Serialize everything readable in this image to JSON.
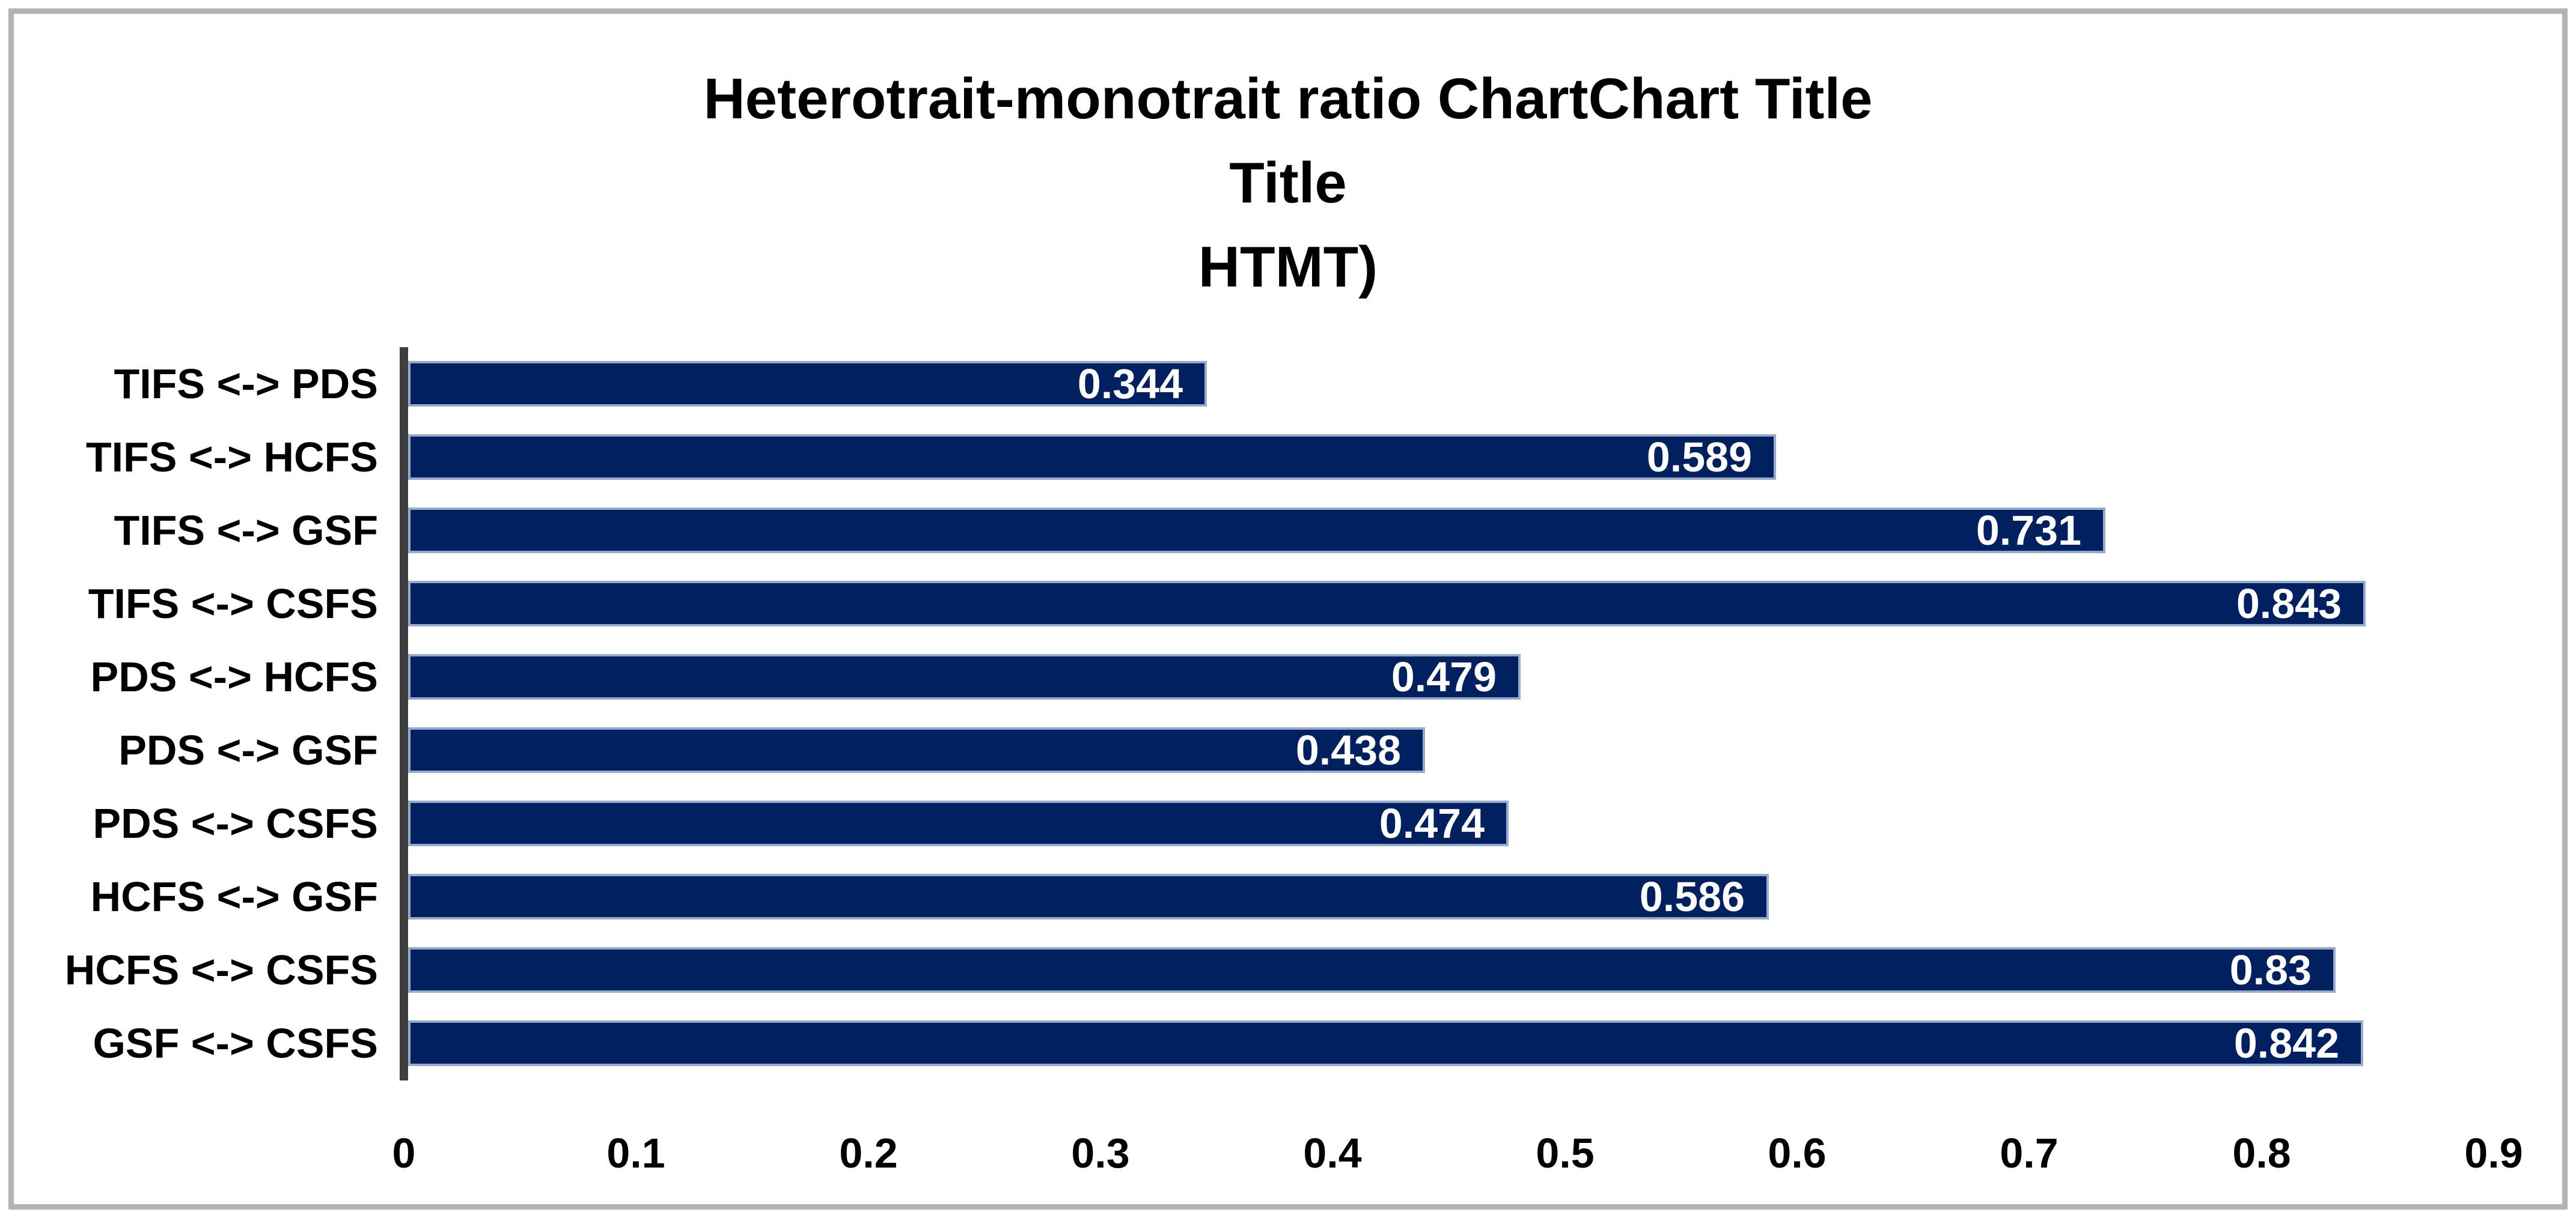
{
  "frame": {
    "border_color": "#b3b3b3",
    "background": "#ffffff"
  },
  "chart_data": {
    "type": "bar",
    "orientation": "horizontal",
    "title": "Heterotrait-monotrait ratio ChartChart Title\nTitle\nHTMT)",
    "title_lines": [
      "Heterotrait-monotrait ratio ChartChart Title",
      "Title",
      "HTMT)"
    ],
    "categories": [
      "TIFS <-> PDS",
      "TIFS <-> HCFS",
      "TIFS <-> GSF",
      "TIFS <-> CSFS",
      "PDS <-> HCFS",
      "PDS <-> GSF",
      "PDS <-> CSFS",
      "HCFS <-> GSF",
      "HCFS <-> CSFS",
      "GSF <-> CSFS"
    ],
    "values": [
      0.344,
      0.589,
      0.731,
      0.843,
      0.479,
      0.438,
      0.474,
      0.586,
      0.83,
      0.842
    ],
    "value_labels": [
      "0.344",
      "0.589",
      "0.731",
      "0.843",
      "0.479",
      "0.438",
      "0.474",
      "0.586",
      "0.83",
      "0.842"
    ],
    "xlabel": "",
    "ylabel": "",
    "xlim": [
      0,
      0.9
    ],
    "x_tick_labels": [
      "0",
      "0.1",
      "0.2",
      "0.3",
      "0.4",
      "0.5",
      "0.6",
      "0.7",
      "0.8",
      "0.9"
    ],
    "x_tick_values": [
      0,
      0.1,
      0.2,
      0.3,
      0.4,
      0.5,
      0.6,
      0.7,
      0.8,
      0.9
    ],
    "grid": false,
    "legend": "none",
    "data_labels": "inside-end",
    "colors": {
      "bar_fill": "#002060",
      "bar_border": "#96aacb",
      "axis_line": "#3f3f3f",
      "text": "#000000",
      "data_label_text": "#ffffff"
    }
  }
}
